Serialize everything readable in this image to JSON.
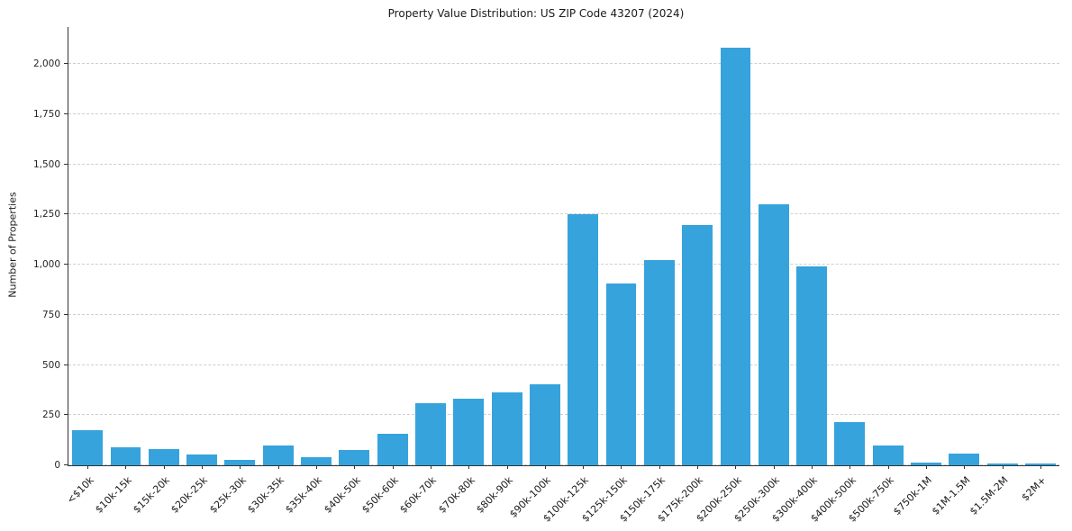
{
  "chart_data": {
    "type": "bar",
    "title": "Property Value Distribution: US ZIP Code 43207 (2024)",
    "xlabel": "",
    "ylabel": "Number of Properties",
    "categories": [
      "<$10k",
      "$10k-15k",
      "$15k-20k",
      "$20k-25k",
      "$25k-30k",
      "$30k-35k",
      "$35k-40k",
      "$40k-50k",
      "$50k-60k",
      "$60k-70k",
      "$70k-80k",
      "$80k-90k",
      "$90k-100k",
      "$100k-125k",
      "$125k-150k",
      "$150k-175k",
      "$175k-200k",
      "$200k-250k",
      "$250k-300k",
      "$300k-400k",
      "$400k-500k",
      "$500k-750k",
      "$750k-1M",
      "$1M-1.5M",
      "$1.5M-2M",
      "$2M+"
    ],
    "values": [
      175,
      90,
      80,
      55,
      25,
      100,
      40,
      75,
      155,
      310,
      330,
      365,
      405,
      1250,
      905,
      1025,
      1200,
      2080,
      1300,
      990,
      215,
      100,
      15,
      60,
      8,
      8
    ],
    "ylim": [
      0,
      2185
    ],
    "yticks": [
      0,
      250,
      500,
      750,
      1000,
      1250,
      1500,
      1750,
      2000
    ],
    "grid": "horizontal-dashed",
    "legend": "none",
    "bar_color": "#36A3DC"
  }
}
